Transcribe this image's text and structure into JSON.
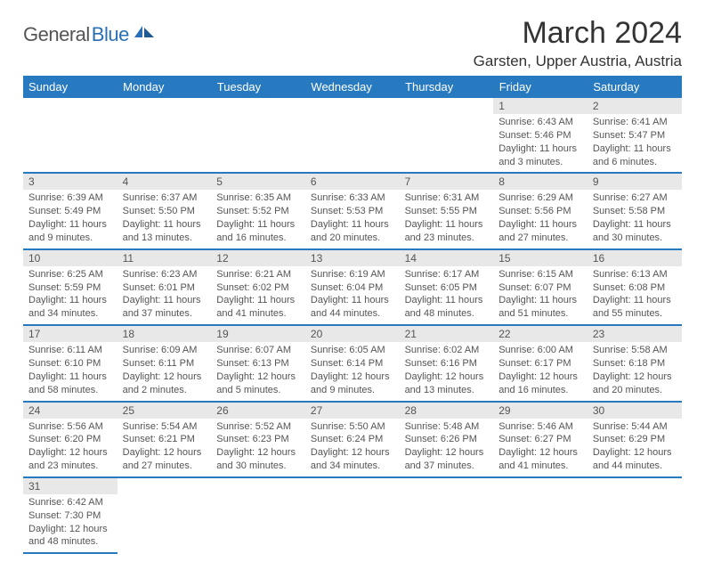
{
  "logo": {
    "general": "General",
    "blue": "Blue"
  },
  "title": "March 2024",
  "location": "Garsten, Upper Austria, Austria",
  "colors": {
    "header_bg": "#287ac0",
    "header_text": "#ffffff",
    "daynum_bg": "#e8e8e8",
    "text": "#555555",
    "border": "#287ac0"
  },
  "weekdays": [
    "Sunday",
    "Monday",
    "Tuesday",
    "Wednesday",
    "Thursday",
    "Friday",
    "Saturday"
  ],
  "weeks": [
    [
      null,
      null,
      null,
      null,
      null,
      {
        "n": "1",
        "sr": "Sunrise: 6:43 AM",
        "ss": "Sunset: 5:46 PM",
        "d1": "Daylight: 11 hours",
        "d2": "and 3 minutes."
      },
      {
        "n": "2",
        "sr": "Sunrise: 6:41 AM",
        "ss": "Sunset: 5:47 PM",
        "d1": "Daylight: 11 hours",
        "d2": "and 6 minutes."
      }
    ],
    [
      {
        "n": "3",
        "sr": "Sunrise: 6:39 AM",
        "ss": "Sunset: 5:49 PM",
        "d1": "Daylight: 11 hours",
        "d2": "and 9 minutes."
      },
      {
        "n": "4",
        "sr": "Sunrise: 6:37 AM",
        "ss": "Sunset: 5:50 PM",
        "d1": "Daylight: 11 hours",
        "d2": "and 13 minutes."
      },
      {
        "n": "5",
        "sr": "Sunrise: 6:35 AM",
        "ss": "Sunset: 5:52 PM",
        "d1": "Daylight: 11 hours",
        "d2": "and 16 minutes."
      },
      {
        "n": "6",
        "sr": "Sunrise: 6:33 AM",
        "ss": "Sunset: 5:53 PM",
        "d1": "Daylight: 11 hours",
        "d2": "and 20 minutes."
      },
      {
        "n": "7",
        "sr": "Sunrise: 6:31 AM",
        "ss": "Sunset: 5:55 PM",
        "d1": "Daylight: 11 hours",
        "d2": "and 23 minutes."
      },
      {
        "n": "8",
        "sr": "Sunrise: 6:29 AM",
        "ss": "Sunset: 5:56 PM",
        "d1": "Daylight: 11 hours",
        "d2": "and 27 minutes."
      },
      {
        "n": "9",
        "sr": "Sunrise: 6:27 AM",
        "ss": "Sunset: 5:58 PM",
        "d1": "Daylight: 11 hours",
        "d2": "and 30 minutes."
      }
    ],
    [
      {
        "n": "10",
        "sr": "Sunrise: 6:25 AM",
        "ss": "Sunset: 5:59 PM",
        "d1": "Daylight: 11 hours",
        "d2": "and 34 minutes."
      },
      {
        "n": "11",
        "sr": "Sunrise: 6:23 AM",
        "ss": "Sunset: 6:01 PM",
        "d1": "Daylight: 11 hours",
        "d2": "and 37 minutes."
      },
      {
        "n": "12",
        "sr": "Sunrise: 6:21 AM",
        "ss": "Sunset: 6:02 PM",
        "d1": "Daylight: 11 hours",
        "d2": "and 41 minutes."
      },
      {
        "n": "13",
        "sr": "Sunrise: 6:19 AM",
        "ss": "Sunset: 6:04 PM",
        "d1": "Daylight: 11 hours",
        "d2": "and 44 minutes."
      },
      {
        "n": "14",
        "sr": "Sunrise: 6:17 AM",
        "ss": "Sunset: 6:05 PM",
        "d1": "Daylight: 11 hours",
        "d2": "and 48 minutes."
      },
      {
        "n": "15",
        "sr": "Sunrise: 6:15 AM",
        "ss": "Sunset: 6:07 PM",
        "d1": "Daylight: 11 hours",
        "d2": "and 51 minutes."
      },
      {
        "n": "16",
        "sr": "Sunrise: 6:13 AM",
        "ss": "Sunset: 6:08 PM",
        "d1": "Daylight: 11 hours",
        "d2": "and 55 minutes."
      }
    ],
    [
      {
        "n": "17",
        "sr": "Sunrise: 6:11 AM",
        "ss": "Sunset: 6:10 PM",
        "d1": "Daylight: 11 hours",
        "d2": "and 58 minutes."
      },
      {
        "n": "18",
        "sr": "Sunrise: 6:09 AM",
        "ss": "Sunset: 6:11 PM",
        "d1": "Daylight: 12 hours",
        "d2": "and 2 minutes."
      },
      {
        "n": "19",
        "sr": "Sunrise: 6:07 AM",
        "ss": "Sunset: 6:13 PM",
        "d1": "Daylight: 12 hours",
        "d2": "and 5 minutes."
      },
      {
        "n": "20",
        "sr": "Sunrise: 6:05 AM",
        "ss": "Sunset: 6:14 PM",
        "d1": "Daylight: 12 hours",
        "d2": "and 9 minutes."
      },
      {
        "n": "21",
        "sr": "Sunrise: 6:02 AM",
        "ss": "Sunset: 6:16 PM",
        "d1": "Daylight: 12 hours",
        "d2": "and 13 minutes."
      },
      {
        "n": "22",
        "sr": "Sunrise: 6:00 AM",
        "ss": "Sunset: 6:17 PM",
        "d1": "Daylight: 12 hours",
        "d2": "and 16 minutes."
      },
      {
        "n": "23",
        "sr": "Sunrise: 5:58 AM",
        "ss": "Sunset: 6:18 PM",
        "d1": "Daylight: 12 hours",
        "d2": "and 20 minutes."
      }
    ],
    [
      {
        "n": "24",
        "sr": "Sunrise: 5:56 AM",
        "ss": "Sunset: 6:20 PM",
        "d1": "Daylight: 12 hours",
        "d2": "and 23 minutes."
      },
      {
        "n": "25",
        "sr": "Sunrise: 5:54 AM",
        "ss": "Sunset: 6:21 PM",
        "d1": "Daylight: 12 hours",
        "d2": "and 27 minutes."
      },
      {
        "n": "26",
        "sr": "Sunrise: 5:52 AM",
        "ss": "Sunset: 6:23 PM",
        "d1": "Daylight: 12 hours",
        "d2": "and 30 minutes."
      },
      {
        "n": "27",
        "sr": "Sunrise: 5:50 AM",
        "ss": "Sunset: 6:24 PM",
        "d1": "Daylight: 12 hours",
        "d2": "and 34 minutes."
      },
      {
        "n": "28",
        "sr": "Sunrise: 5:48 AM",
        "ss": "Sunset: 6:26 PM",
        "d1": "Daylight: 12 hours",
        "d2": "and 37 minutes."
      },
      {
        "n": "29",
        "sr": "Sunrise: 5:46 AM",
        "ss": "Sunset: 6:27 PM",
        "d1": "Daylight: 12 hours",
        "d2": "and 41 minutes."
      },
      {
        "n": "30",
        "sr": "Sunrise: 5:44 AM",
        "ss": "Sunset: 6:29 PM",
        "d1": "Daylight: 12 hours",
        "d2": "and 44 minutes."
      }
    ],
    [
      {
        "n": "31",
        "sr": "Sunrise: 6:42 AM",
        "ss": "Sunset: 7:30 PM",
        "d1": "Daylight: 12 hours",
        "d2": "and 48 minutes."
      },
      null,
      null,
      null,
      null,
      null,
      null
    ]
  ]
}
